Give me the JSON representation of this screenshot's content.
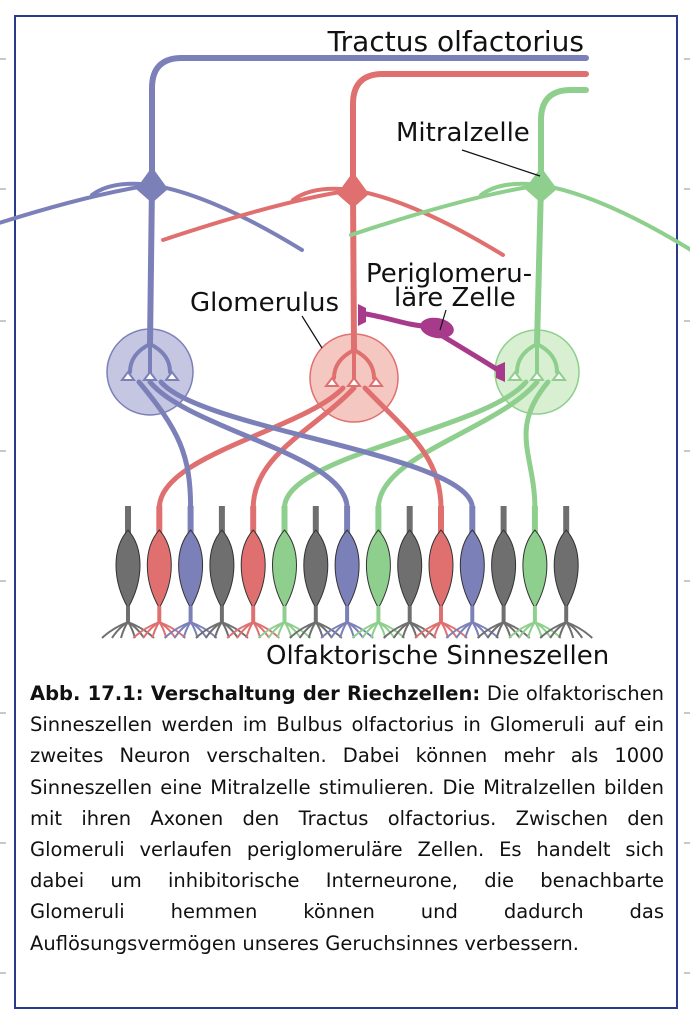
{
  "labels": {
    "tractus": "Tractus olfactorius",
    "mitral": "Mitralzelle",
    "periglomerular_line1": "Periglomeru-",
    "periglomerular_line2": "läre Zelle",
    "glomerulus": "Glomerulus",
    "sensory": "Olfaktorische Sinneszellen"
  },
  "caption": {
    "heading": "Abb. 17.1: Verschaltung der Riechzellen:",
    "body": "Die olfaktorischen Sinneszellen werden im Bulbus olfactorius in Glomeruli auf ein zweites Neuron verschalten. Dabei können mehr als 1000 Sinneszellen eine Mitralzelle stimulieren. Die Mitralzellen bilden mit ihren Axonen den Tractus olfactorius. Zwischen den Glomeruli verlaufen periglomeruläre Zellen. Es handelt sich dabei um inhibitorische Interneurone, die benachbarte Glomeruli hemmen können und dadurch das Auflösungsvermögen unseres Geruchsinnes verbessern."
  },
  "colors": {
    "frame": "#2a3a8c",
    "blue": "#7c80b8",
    "red": "#e07070",
    "green": "#8ecf8e",
    "gray": "#6f6f6f",
    "periglomerular": "#a83a8c",
    "glomerulus_blue_fill": "#c5c6e2",
    "glomerulus_red_fill": "#f5c7c1",
    "glomerulus_green_fill": "#d9efd2"
  },
  "sensory_cells": [
    "gray",
    "red",
    "blue",
    "gray",
    "red",
    "green",
    "gray",
    "blue",
    "green",
    "gray",
    "red",
    "blue",
    "gray",
    "green",
    "gray"
  ]
}
